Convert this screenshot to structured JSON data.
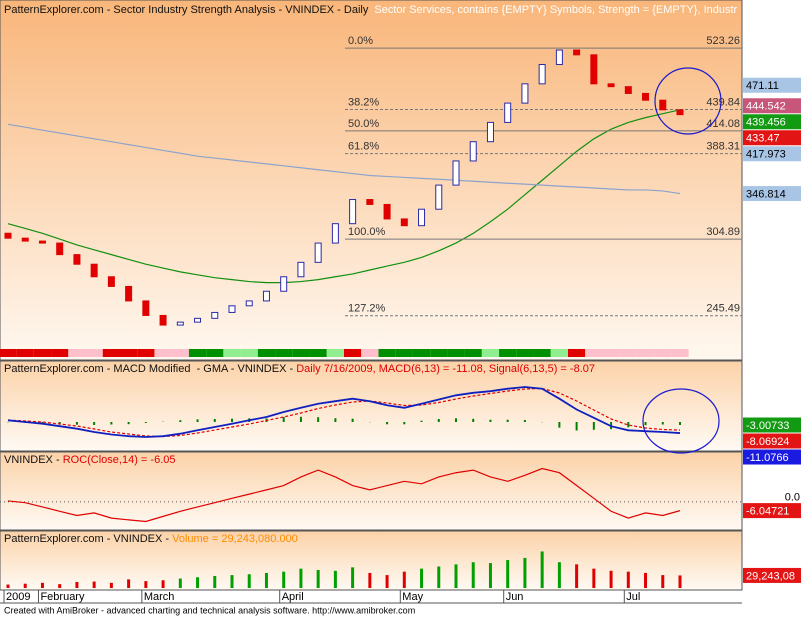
{
  "chart_data": [
    {
      "type": "candlestick",
      "title": "PatternExplorer.com - Sector Industry Strength Analysis - VNINDEX - Daily",
      "subtitle": "Sector Services, contains {EMPTY} Symbols, Strength = {EMPTY}, Industr",
      "log_scale": true,
      "ylim": [
        226,
        573
      ],
      "up_color": "#ffffff",
      "up_edge": "#2a2aa8",
      "down_color": "#e00000",
      "open": [
        310,
        305.7,
        303.2,
        301.5,
        291.8,
        284.0,
        274.1,
        266.7,
        256.0,
        245.7,
        239.1,
        241.1,
        243.7,
        247.8,
        252.5,
        256.0,
        263.1,
        274.1,
        285.5,
        301.5,
        318.5,
        341.0,
        336.3,
        322.8,
        316.7,
        331.8,
        355.2,
        380.3,
        401.6,
        424.1,
        447.9,
        473.0,
        499.6,
        520.4,
        513.4,
        473.0,
        469.2,
        460.3,
        451.6,
        439.5
      ],
      "close": [
        305.7,
        303.2,
        301.5,
        291.8,
        284.0,
        274.1,
        266.7,
        256.0,
        245.7,
        239.1,
        241.1,
        243.7,
        247.8,
        252.5,
        256.0,
        263.1,
        274.1,
        285.5,
        301.5,
        318.5,
        341.0,
        336.3,
        322.8,
        316.7,
        331.8,
        355.2,
        380.3,
        401.6,
        424.1,
        447.9,
        473.0,
        499.6,
        520.4,
        513.4,
        473.0,
        469.2,
        460.3,
        451.6,
        439.5,
        433.47
      ],
      "overlays": [
        {
          "color": "#109010",
          "values": [
            318.5,
            314.2,
            309.9,
            304.9,
            299.9,
            295.8,
            291.8,
            287.9,
            284.0,
            280.9,
            277.9,
            275.6,
            273.4,
            271.9,
            270.4,
            269.6,
            269.6,
            270.4,
            271.9,
            274.1,
            276.3,
            279.4,
            282.5,
            285.5,
            289.5,
            295.0,
            301.5,
            309.9,
            320.2,
            331.8,
            345.7,
            360.1,
            375.1,
            390.8,
            404.9,
            416.1,
            424.1,
            429.9,
            434.7,
            439.456
          ]
        },
        {
          "color": "#8ca4cc",
          "values": [
            421.8,
            418.4,
            414.9,
            411.6,
            408.2,
            404.9,
            401.6,
            398.3,
            395.1,
            391.8,
            388.7,
            385.5,
            383.4,
            381.3,
            379.2,
            377.2,
            375.1,
            373.1,
            371.0,
            369.0,
            367.0,
            365.0,
            364.0,
            363.0,
            362.0,
            361.1,
            360.1,
            359.1,
            358.1,
            357.1,
            356.2,
            355.2,
            354.2,
            353.3,
            352.3,
            351.3,
            350.4,
            350.4,
            349.4,
            346.814
          ]
        }
      ],
      "fib_levels": [
        {
          "label": "0.0%",
          "value": 523.26
        },
        {
          "label": "38.2%",
          "value": 439.84
        },
        {
          "label": "50.0%",
          "value": 414.08
        },
        {
          "label": "61.8%",
          "value": 388.31
        },
        {
          "label": "100.0%",
          "value": 304.89
        },
        {
          "label": "127.2%",
          "value": 245.49
        }
      ],
      "price_labels": [
        {
          "value": 471.11,
          "color": "#a9c5e6"
        },
        {
          "value": 444.542,
          "color": "#c8567a"
        },
        {
          "value": 439.456,
          "color": "#129a12"
        },
        {
          "value": 433.47,
          "color": "#e31414"
        },
        {
          "value": 417.973,
          "color": "#a9c5e6"
        },
        {
          "value": 346.814,
          "color": "#a9c5e6"
        }
      ],
      "strength_colors": [
        "#e00000",
        "#e00000",
        "#e00000",
        "#e00000",
        "#ffc0cb",
        "#ffc0cb",
        "#e00000",
        "#e00000",
        "#e00000",
        "#ffc0cb",
        "#ffc0cb",
        "#009000",
        "#009000",
        "#90ee90",
        "#90ee90",
        "#009000",
        "#009000",
        "#009000",
        "#009000",
        "#90ee90",
        "#e00000",
        "#ffc0cb",
        "#009000",
        "#009000",
        "#009000",
        "#009000",
        "#009000",
        "#009000",
        "#90ee90",
        "#009000",
        "#009000",
        "#009000",
        "#90ee90",
        "#e00000",
        "#ffc0cb",
        "#ffc0cb",
        "#ffc0cb",
        "#ffc0cb",
        "#ffc0cb",
        "#ffc0cb"
      ]
    },
    {
      "type": "macd",
      "title": "PatternExplorer.com - MACD Modified  - GMA - VNINDEX - ",
      "title_highlight": "Daily 7/16/2009, MACD(6,13) = -11.08, Signal(6,13,5) = -8.07",
      "highlight_color": "#e00000",
      "ylim": [
        -27,
        48
      ],
      "macd": {
        "color": "#1020c0",
        "values": [
          1.7,
          0,
          -1.7,
          -4.2,
          -6.7,
          -10,
          -12.5,
          -14.2,
          -15,
          -14.2,
          -11.7,
          -8.3,
          -5,
          -1.7,
          1.7,
          5,
          10,
          14.2,
          18.3,
          20.8,
          23.3,
          20.8,
          16.7,
          14.2,
          18.3,
          22.5,
          26.7,
          29.2,
          30.8,
          33.3,
          35,
          33.3,
          23.3,
          12.5,
          4.2,
          -4.2,
          -8.3,
          -9.2,
          -10,
          -11.08
        ]
      },
      "signal": {
        "color": "#e00000",
        "values": [
          2,
          1,
          0,
          -2,
          -4,
          -7,
          -10,
          -12,
          -14,
          -14.5,
          -13.5,
          -11,
          -8,
          -5,
          -2,
          1.5,
          5,
          9,
          13.5,
          17,
          20,
          21,
          19,
          16.5,
          17,
          19.5,
          23,
          26,
          28.5,
          31,
          33,
          33.5,
          29,
          21,
          12,
          3,
          -3,
          -6,
          -7.5,
          -8.07
        ]
      },
      "histogram": {
        "color": "#008000",
        "values": [
          -0.3,
          -1,
          -1.7,
          -2.2,
          -2.7,
          -3,
          -2.5,
          -2.2,
          -1,
          0.3,
          1.8,
          2.7,
          3,
          3.3,
          3.7,
          3.5,
          5,
          5.2,
          4.8,
          3.8,
          3.3,
          -0.2,
          -2.3,
          -2.3,
          1.3,
          3,
          3.7,
          3.2,
          2.3,
          2.3,
          2,
          -0.2,
          -5.7,
          -8.5,
          -7.8,
          -7.2,
          -5.3,
          -3.2,
          -2.5,
          -3.00733
        ]
      },
      "end_labels": [
        {
          "value": -3.00733,
          "color": "#129a12"
        },
        {
          "value": -8.06924,
          "color": "#e31414"
        },
        {
          "value": -11.0766,
          "color": "#1a1ae0"
        }
      ]
    },
    {
      "type": "line",
      "title": "VNINDEX - ",
      "title_highlight": "ROC(Close,14) = -6.05",
      "highlight_color": "#e00000",
      "color": "#e00000",
      "ylim": [
        -18,
        26
      ],
      "yticks": [
        {
          "value": 0,
          "label": "0.0"
        }
      ],
      "grid": true,
      "values": [
        0.6,
        -0.6,
        -3.5,
        -6.5,
        -9.4,
        -7.6,
        -11.2,
        -12.4,
        -13.5,
        -10,
        -6.5,
        -3.5,
        -0.6,
        2.4,
        5.3,
        8.2,
        11.2,
        17.1,
        21.8,
        17.1,
        11.2,
        8.2,
        11.2,
        14.1,
        12.4,
        17.1,
        20,
        21.8,
        17.1,
        14.1,
        18.2,
        22.9,
        20,
        11.2,
        2.4,
        -6.5,
        -11.2,
        -7.6,
        -9.4,
        -6.05
      ],
      "end_labels": [
        {
          "value": -6.04721,
          "color": "#e31414"
        }
      ]
    },
    {
      "type": "volume",
      "title": "PatternExplorer.com - VNINDEX - ",
      "title_highlight": "Volume = 29,243,080.000",
      "highlight_color": "#ff8c00",
      "up_color": "#00a000",
      "down_color": "#e00000",
      "ylim": [
        0,
        100000000
      ],
      "categories": [
        "2009",
        null,
        "February",
        null,
        null,
        null,
        null,
        null,
        "March",
        null,
        null,
        null,
        null,
        null,
        null,
        null,
        "April",
        null,
        null,
        null,
        null,
        null,
        null,
        "May",
        null,
        null,
        null,
        null,
        null,
        "Jun",
        null,
        null,
        null,
        null,
        null,
        null,
        "Jul",
        null,
        null,
        null
      ],
      "values": [
        8000000,
        10000000,
        12000000,
        9000000,
        14000000,
        15000000,
        12000000,
        20000000,
        16000000,
        18000000,
        22000000,
        25000000,
        28000000,
        30000000,
        32000000,
        35000000,
        38000000,
        45000000,
        42000000,
        40000000,
        48000000,
        35000000,
        30000000,
        38000000,
        45000000,
        50000000,
        55000000,
        60000000,
        58000000,
        65000000,
        70000000,
        85000000,
        60000000,
        55000000,
        45000000,
        40000000,
        38000000,
        35000000,
        30000000,
        29243080
      ],
      "end_labels": [
        {
          "value": 29243080,
          "label": "29,243,08",
          "color": "#e31414"
        }
      ]
    }
  ],
  "footer": "Created with AmiBroker - advanced charting and technical analysis software. http://www.amibroker.com"
}
